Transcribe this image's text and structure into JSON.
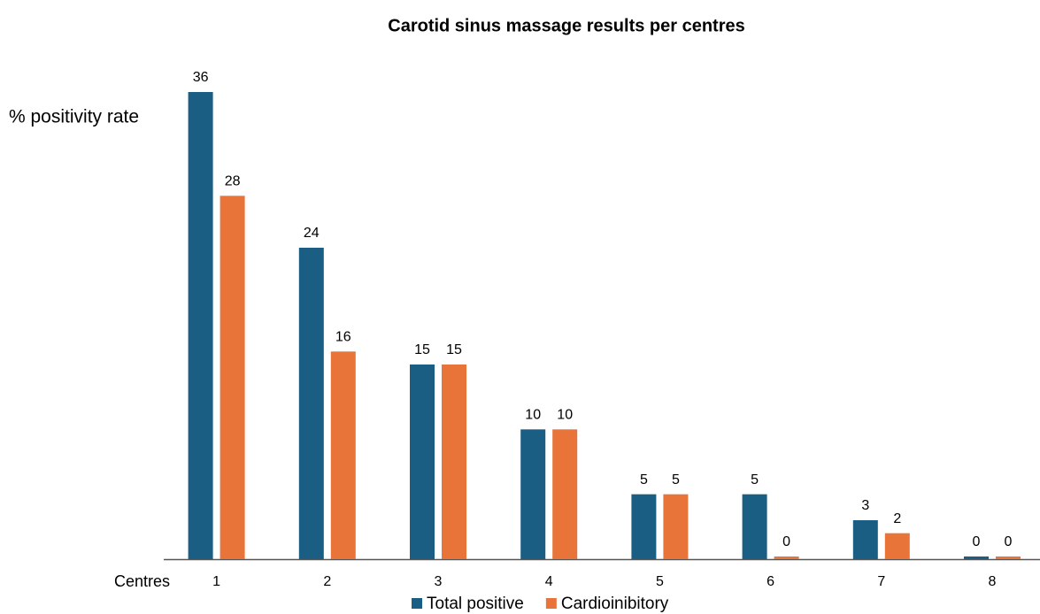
{
  "chart_data": {
    "type": "bar",
    "title": "Carotid sinus massage results per centres",
    "y_label": "% positivity rate",
    "x_label": "Centres",
    "categories": [
      "1",
      "2",
      "3",
      "4",
      "5",
      "6",
      "7",
      "8"
    ],
    "series": [
      {
        "name": "Total positive",
        "color": "#1b5e83",
        "values": [
          36,
          24,
          15,
          10,
          5,
          5,
          3,
          0
        ]
      },
      {
        "name": "Cardioinibitory",
        "color": "#e8743a",
        "values": [
          28,
          16,
          15,
          10,
          5,
          0,
          2,
          0
        ]
      }
    ],
    "ylim": [
      0,
      36
    ],
    "legend": "bottom"
  }
}
